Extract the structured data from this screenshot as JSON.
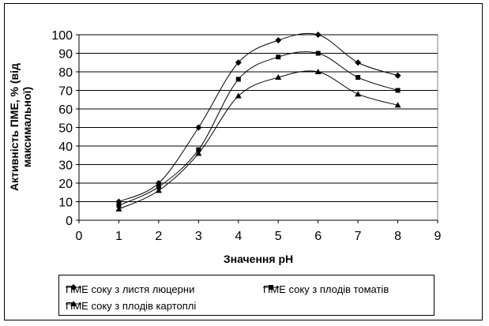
{
  "chart_data": {
    "type": "line",
    "title": "",
    "xlabel": "Значення pH",
    "ylabel_lines": [
      "Активність ПМЕ, % (від",
      "максимальної)"
    ],
    "xlim": [
      0,
      9
    ],
    "ylim": [
      0,
      100
    ],
    "xticks": [
      0,
      1,
      2,
      3,
      4,
      5,
      6,
      7,
      8,
      9
    ],
    "yticks": [
      0,
      10,
      20,
      30,
      40,
      50,
      60,
      70,
      80,
      90,
      100
    ],
    "grid": "horizontal",
    "legend_position": "bottom",
    "x": [
      1,
      2,
      3,
      4,
      5,
      6,
      7,
      8
    ],
    "series": [
      {
        "name": "ПМЕ соку з листя люцерни",
        "marker": "diamond",
        "values": [
          10,
          20,
          50,
          85,
          97,
          100,
          85,
          78
        ]
      },
      {
        "name": "ПМЕ соку з плодів томатів",
        "marker": "square",
        "values": [
          8,
          18,
          38,
          76,
          88,
          90,
          77,
          70
        ]
      },
      {
        "name": "ПМЕ соку з плодів картоплі",
        "marker": "triangle",
        "values": [
          6,
          16,
          36,
          67,
          77,
          80,
          68,
          62
        ]
      }
    ]
  }
}
